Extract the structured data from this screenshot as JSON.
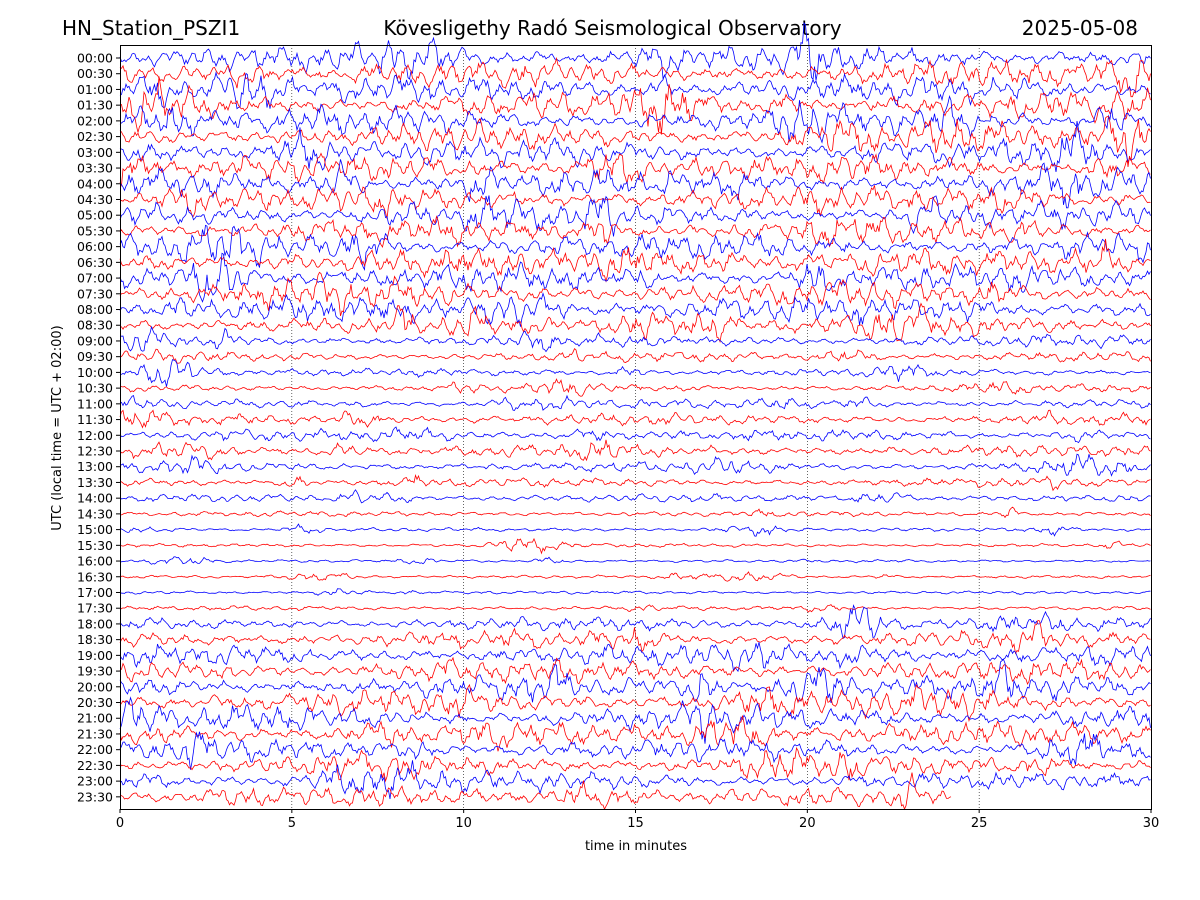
{
  "header": {
    "station": "HN_Station_PSZI1",
    "title": "Kövesligethy Radó Seismological Observatory",
    "date": "2025-05-08"
  },
  "chart_data": {
    "type": "line",
    "title": "Kövesligethy Radó Seismological Observatory",
    "xlabel": "time in minutes",
    "ylabel": "UTC (local time = UTC + 02:00)",
    "xlim": [
      0,
      30
    ],
    "xticks": [
      "0",
      "5",
      "10",
      "15",
      "20",
      "25",
      "30"
    ],
    "grid": "vertical dotted lines at 5, 10, 15, 20, 25 minutes",
    "trace_colors": [
      "#0000ff",
      "#ff0000"
    ],
    "last_trace_end_minute": 24.2,
    "rows": [
      {
        "label": "00:00",
        "activity": 1.0
      },
      {
        "label": "00:30",
        "activity": 1.0
      },
      {
        "label": "01:00",
        "activity": 1.0
      },
      {
        "label": "01:30",
        "activity": 1.0
      },
      {
        "label": "02:00",
        "activity": 1.0
      },
      {
        "label": "02:30",
        "activity": 1.0
      },
      {
        "label": "03:00",
        "activity": 1.0
      },
      {
        "label": "03:30",
        "activity": 1.0
      },
      {
        "label": "04:00",
        "activity": 1.0
      },
      {
        "label": "04:30",
        "activity": 0.95
      },
      {
        "label": "05:00",
        "activity": 0.9
      },
      {
        "label": "05:30",
        "activity": 0.95
      },
      {
        "label": "06:00",
        "activity": 1.0
      },
      {
        "label": "06:30",
        "activity": 1.0
      },
      {
        "label": "07:00",
        "activity": 1.0
      },
      {
        "label": "07:30",
        "activity": 1.0
      },
      {
        "label": "08:00",
        "activity": 0.95
      },
      {
        "label": "08:30",
        "activity": 0.7
      },
      {
        "label": "09:00",
        "activity": 0.45
      },
      {
        "label": "09:30",
        "activity": 0.35
      },
      {
        "label": "10:00",
        "activity": 0.25
      },
      {
        "label": "10:30",
        "activity": 0.25
      },
      {
        "label": "11:00",
        "activity": 0.3
      },
      {
        "label": "11:30",
        "activity": 0.4
      },
      {
        "label": "12:00",
        "activity": 0.4
      },
      {
        "label": "12:30",
        "activity": 0.45
      },
      {
        "label": "13:00",
        "activity": 0.35
      },
      {
        "label": "13:30",
        "activity": 0.3
      },
      {
        "label": "14:00",
        "activity": 0.25
      },
      {
        "label": "14:30",
        "activity": 0.15
      },
      {
        "label": "15:00",
        "activity": 0.08
      },
      {
        "label": "15:30",
        "activity": 0.08
      },
      {
        "label": "16:00",
        "activity": 0.05
      },
      {
        "label": "16:30",
        "activity": 0.05
      },
      {
        "label": "17:00",
        "activity": 0.06
      },
      {
        "label": "17:30",
        "activity": 0.12
      },
      {
        "label": "18:00",
        "activity": 0.45
      },
      {
        "label": "18:30",
        "activity": 0.65
      },
      {
        "label": "19:00",
        "activity": 0.8
      },
      {
        "label": "19:30",
        "activity": 0.85
      },
      {
        "label": "20:00",
        "activity": 0.9
      },
      {
        "label": "20:30",
        "activity": 0.95
      },
      {
        "label": "21:00",
        "activity": 0.95
      },
      {
        "label": "21:30",
        "activity": 0.9
      },
      {
        "label": "22:00",
        "activity": 0.8
      },
      {
        "label": "22:30",
        "activity": 0.75
      },
      {
        "label": "23:00",
        "activity": 0.7
      },
      {
        "label": "23:30",
        "activity": 0.7
      }
    ]
  }
}
